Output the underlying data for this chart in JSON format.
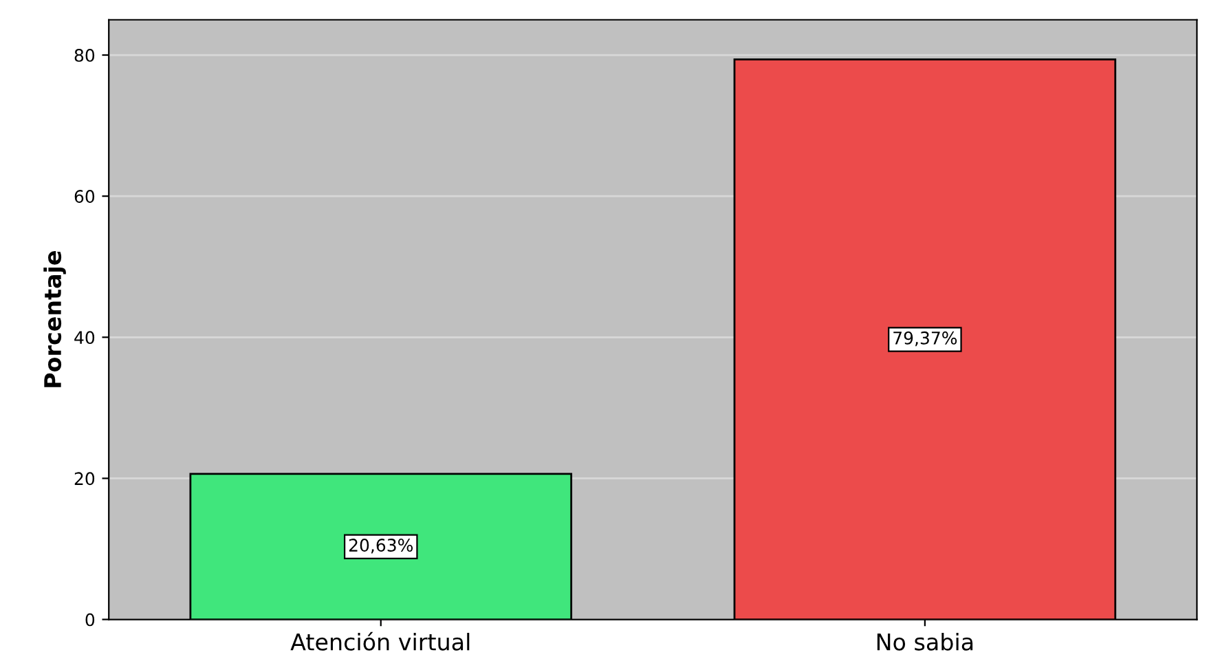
{
  "chart_data": {
    "type": "bar",
    "ylabel": "Porcentaje",
    "categories": [
      "Atención virtual",
      "No sabia"
    ],
    "values": [
      20.63,
      79.37
    ],
    "colors": [
      "#40e67c",
      "#ec4b4b"
    ],
    "value_labels": [
      "20,63%",
      "79,37%"
    ],
    "ylim": [
      0,
      85
    ],
    "yticks": [
      0,
      20,
      40,
      60,
      80
    ],
    "grid": "y"
  }
}
